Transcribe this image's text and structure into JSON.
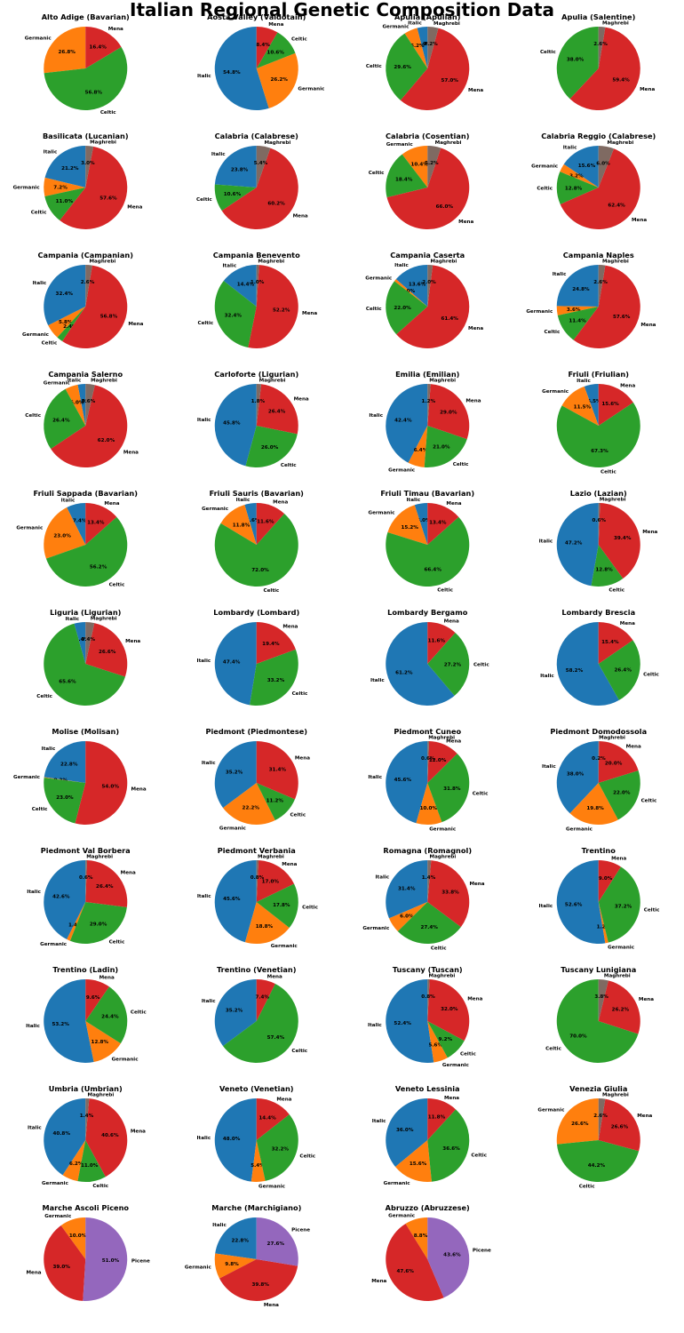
{
  "title": "Italian Regional Genetic Composition Data",
  "colors": {
    "Italic": "#1f77b4",
    "Germanic": "#ff7f0e",
    "Celtic": "#2ca02c",
    "Mena": "#d62728",
    "Picene": "#9467bd",
    "Maghrebi": "#7f6a62"
  },
  "chart_data": [
    {
      "type": "pie",
      "title": "Alto Adige (Bavarian)",
      "slices": [
        {
          "label": "Germanic",
          "value": 26.8
        },
        {
          "label": "Celtic",
          "value": 56.8
        },
        {
          "label": "Mena",
          "value": 16.4
        }
      ]
    },
    {
      "type": "pie",
      "title": "Aosta Valley (Valdotain)",
      "slices": [
        {
          "label": "Italic",
          "value": 54.8
        },
        {
          "label": "Germanic",
          "value": 26.2
        },
        {
          "label": "Celtic",
          "value": 10.6
        },
        {
          "label": "Mena",
          "value": 8.4
        }
      ]
    },
    {
      "type": "pie",
      "title": "Apulia (Apulian)",
      "slices": [
        {
          "label": "Italic",
          "value": 4.0
        },
        {
          "label": "Germanic",
          "value": 5.2
        },
        {
          "label": "Celtic",
          "value": 29.6
        },
        {
          "label": "Mena",
          "value": 57.0
        },
        {
          "label": "Maghrebi",
          "value": 4.2
        }
      ]
    },
    {
      "type": "pie",
      "title": "Apulia (Salentine)",
      "slices": [
        {
          "label": "Celtic",
          "value": 38.0
        },
        {
          "label": "Mena",
          "value": 59.4
        },
        {
          "label": "Maghrebi",
          "value": 2.6
        }
      ]
    },
    {
      "type": "pie",
      "title": "Basilicata (Lucanian)",
      "slices": [
        {
          "label": "Italic",
          "value": 21.2
        },
        {
          "label": "Germanic",
          "value": 7.2
        },
        {
          "label": "Celtic",
          "value": 11.0
        },
        {
          "label": "Mena",
          "value": 57.6
        },
        {
          "label": "Maghrebi",
          "value": 3.0
        }
      ]
    },
    {
      "type": "pie",
      "title": "Calabria (Calabrese)",
      "slices": [
        {
          "label": "Italic",
          "value": 23.8
        },
        {
          "label": "Celtic",
          "value": 10.6
        },
        {
          "label": "Mena",
          "value": 60.2
        },
        {
          "label": "Maghrebi",
          "value": 5.4
        }
      ]
    },
    {
      "type": "pie",
      "title": "Calabria (Cosentian)",
      "slices": [
        {
          "label": "Germanic",
          "value": 10.4
        },
        {
          "label": "Celtic",
          "value": 18.4
        },
        {
          "label": "Mena",
          "value": 66.0
        },
        {
          "label": "Maghrebi",
          "value": 5.2
        }
      ]
    },
    {
      "type": "pie",
      "title": "Calabria Reggio (Calabrese)",
      "slices": [
        {
          "label": "Italic",
          "value": 15.6
        },
        {
          "label": "Germanic",
          "value": 3.2
        },
        {
          "label": "Celtic",
          "value": 12.8
        },
        {
          "label": "Mena",
          "value": 62.4
        },
        {
          "label": "Maghrebi",
          "value": 6.0
        }
      ]
    },
    {
      "type": "pie",
      "title": "Campania (Campanian)",
      "slices": [
        {
          "label": "Italic",
          "value": 32.4
        },
        {
          "label": "Germanic",
          "value": 5.8
        },
        {
          "label": "Celtic",
          "value": 2.4
        },
        {
          "label": "Mena",
          "value": 56.8
        },
        {
          "label": "Maghrebi",
          "value": 2.6
        }
      ]
    },
    {
      "type": "pie",
      "title": "Campania Benevento",
      "slices": [
        {
          "label": "Italic",
          "value": 14.4
        },
        {
          "label": "Celtic",
          "value": 32.4
        },
        {
          "label": "Mena",
          "value": 52.2
        },
        {
          "label": "Maghrebi",
          "value": 1.0
        }
      ]
    },
    {
      "type": "pie",
      "title": "Campania Caserta",
      "slices": [
        {
          "label": "Italic",
          "value": 13.6
        },
        {
          "label": "Germanic",
          "value": 1.0
        },
        {
          "label": "Celtic",
          "value": 22.0
        },
        {
          "label": "Mena",
          "value": 61.4
        },
        {
          "label": "Maghrebi",
          "value": 2.0
        }
      ]
    },
    {
      "type": "pie",
      "title": "Campania Naples",
      "slices": [
        {
          "label": "Italic",
          "value": 24.8
        },
        {
          "label": "Germanic",
          "value": 3.6
        },
        {
          "label": "Celtic",
          "value": 11.4
        },
        {
          "label": "Mena",
          "value": 57.6
        },
        {
          "label": "Maghrebi",
          "value": 2.6
        }
      ]
    },
    {
      "type": "pie",
      "title": "Campania Salerno",
      "slices": [
        {
          "label": "Italic",
          "value": 3.0
        },
        {
          "label": "Germanic",
          "value": 5.0
        },
        {
          "label": "Celtic",
          "value": 26.4
        },
        {
          "label": "Mena",
          "value": 62.0
        },
        {
          "label": "Maghrebi",
          "value": 3.6
        }
      ]
    },
    {
      "type": "pie",
      "title": "Carloforte (Ligurian)",
      "slices": [
        {
          "label": "Italic",
          "value": 45.8
        },
        {
          "label": "Celtic",
          "value": 26.0
        },
        {
          "label": "Mena",
          "value": 26.4
        },
        {
          "label": "Maghrebi",
          "value": 1.8
        }
      ]
    },
    {
      "type": "pie",
      "title": "Emilia (Emilian)",
      "slices": [
        {
          "label": "Italic",
          "value": 42.4
        },
        {
          "label": "Germanic",
          "value": 6.4
        },
        {
          "label": "Celtic",
          "value": 21.0
        },
        {
          "label": "Mena",
          "value": 29.0
        },
        {
          "label": "Maghrebi",
          "value": 1.2
        }
      ]
    },
    {
      "type": "pie",
      "title": "Friuli (Friulian)",
      "slices": [
        {
          "label": "Italic",
          "value": 5.6
        },
        {
          "label": "Germanic",
          "value": 11.6
        },
        {
          "label": "Celtic",
          "value": 68.0
        },
        {
          "label": "Mena",
          "value": 15.8
        }
      ]
    },
    {
      "type": "pie",
      "title": "Friuli Sappada (Bavarian)",
      "slices": [
        {
          "label": "Italic",
          "value": 7.4
        },
        {
          "label": "Germanic",
          "value": 23.0
        },
        {
          "label": "Celtic",
          "value": 56.2
        },
        {
          "label": "Mena",
          "value": 13.4
        }
      ]
    },
    {
      "type": "pie",
      "title": "Friuli Sauris (Bavarian)",
      "slices": [
        {
          "label": "Italic",
          "value": 4.6
        },
        {
          "label": "Germanic",
          "value": 11.8
        },
        {
          "label": "Celtic",
          "value": 72.0
        },
        {
          "label": "Mena",
          "value": 11.6
        }
      ]
    },
    {
      "type": "pie",
      "title": "Friuli Timau (Bavarian)",
      "slices": [
        {
          "label": "Italic",
          "value": 5.0
        },
        {
          "label": "Germanic",
          "value": 15.2
        },
        {
          "label": "Celtic",
          "value": 66.4
        },
        {
          "label": "Mena",
          "value": 13.4
        }
      ]
    },
    {
      "type": "pie",
      "title": "Lazio (Lazian)",
      "slices": [
        {
          "label": "Italic",
          "value": 47.2
        },
        {
          "label": "Celtic",
          "value": 12.8
        },
        {
          "label": "Mena",
          "value": 39.4
        },
        {
          "label": "Maghrebi",
          "value": 0.6
        }
      ]
    },
    {
      "type": "pie",
      "title": "Liguria (Ligurian)",
      "slices": [
        {
          "label": "Italic",
          "value": 4.4
        },
        {
          "label": "Celtic",
          "value": 65.6
        },
        {
          "label": "Mena",
          "value": 26.6
        },
        {
          "label": "Maghrebi",
          "value": 3.4
        }
      ]
    },
    {
      "type": "pie",
      "title": "Lombardy (Lombard)",
      "slices": [
        {
          "label": "Italic",
          "value": 47.4
        },
        {
          "label": "Celtic",
          "value": 33.2
        },
        {
          "label": "Mena",
          "value": 19.4
        }
      ]
    },
    {
      "type": "pie",
      "title": "Lombardy Bergamo",
      "slices": [
        {
          "label": "Italic",
          "value": 61.2
        },
        {
          "label": "Celtic",
          "value": 27.2
        },
        {
          "label": "Mena",
          "value": 11.6
        }
      ]
    },
    {
      "type": "pie",
      "title": "Lombardy Brescia",
      "slices": [
        {
          "label": "Italic",
          "value": 58.2
        },
        {
          "label": "Celtic",
          "value": 26.4
        },
        {
          "label": "Mena",
          "value": 15.4
        }
      ]
    },
    {
      "type": "pie",
      "title": "Molise (Molisan)",
      "slices": [
        {
          "label": "Italic",
          "value": 22.8
        },
        {
          "label": "Germanic",
          "value": 0.2
        },
        {
          "label": "Celtic",
          "value": 23.0
        },
        {
          "label": "Mena",
          "value": 54.0
        }
      ]
    },
    {
      "type": "pie",
      "title": "Piedmont (Piedmontese)",
      "slices": [
        {
          "label": "Italic",
          "value": 35.2
        },
        {
          "label": "Germanic",
          "value": 22.2
        },
        {
          "label": "Celtic",
          "value": 11.2
        },
        {
          "label": "Mena",
          "value": 31.4
        }
      ]
    },
    {
      "type": "pie",
      "title": "Piedmont Cuneo",
      "slices": [
        {
          "label": "Italic",
          "value": 45.6
        },
        {
          "label": "Germanic",
          "value": 10.0
        },
        {
          "label": "Celtic",
          "value": 31.8
        },
        {
          "label": "Mena",
          "value": 12.0
        },
        {
          "label": "Maghrebi",
          "value": 0.6
        }
      ]
    },
    {
      "type": "pie",
      "title": "Piedmont Domodossola",
      "slices": [
        {
          "label": "Italic",
          "value": 38.0
        },
        {
          "label": "Germanic",
          "value": 19.8
        },
        {
          "label": "Celtic",
          "value": 22.0
        },
        {
          "label": "Mena",
          "value": 20.0
        },
        {
          "label": "Maghrebi",
          "value": 0.2
        }
      ]
    },
    {
      "type": "pie",
      "title": "Piedmont Val Borbera",
      "slices": [
        {
          "label": "Italic",
          "value": 42.6
        },
        {
          "label": "Germanic",
          "value": 1.4
        },
        {
          "label": "Celtic",
          "value": 29.0
        },
        {
          "label": "Mena",
          "value": 26.4
        },
        {
          "label": "Maghrebi",
          "value": 0.6
        }
      ]
    },
    {
      "type": "pie",
      "title": "Piedmont Verbania",
      "slices": [
        {
          "label": "Italic",
          "value": 45.6
        },
        {
          "label": "Germanic",
          "value": 18.8
        },
        {
          "label": "Celtic",
          "value": 17.8
        },
        {
          "label": "Mena",
          "value": 17.0
        },
        {
          "label": "Maghrebi",
          "value": 0.8
        }
      ]
    },
    {
      "type": "pie",
      "title": "Romagna (Romagnol)",
      "slices": [
        {
          "label": "Italic",
          "value": 31.4
        },
        {
          "label": "Germanic",
          "value": 6.0
        },
        {
          "label": "Celtic",
          "value": 27.4
        },
        {
          "label": "Mena",
          "value": 33.8
        },
        {
          "label": "Maghrebi",
          "value": 1.4
        }
      ]
    },
    {
      "type": "pie",
      "title": "Trentino",
      "slices": [
        {
          "label": "Italic",
          "value": 52.6
        },
        {
          "label": "Germanic",
          "value": 1.2
        },
        {
          "label": "Celtic",
          "value": 37.2
        },
        {
          "label": "Mena",
          "value": 9.0
        }
      ]
    },
    {
      "type": "pie",
      "title": "Trentino (Ladin)",
      "slices": [
        {
          "label": "Italic",
          "value": 53.2
        },
        {
          "label": "Germanic",
          "value": 12.8
        },
        {
          "label": "Celtic",
          "value": 24.4
        },
        {
          "label": "Mena",
          "value": 9.6
        }
      ]
    },
    {
      "type": "pie",
      "title": "Trentino (Venetian)",
      "slices": [
        {
          "label": "Italic",
          "value": 35.2
        },
        {
          "label": "Celtic",
          "value": 57.4
        },
        {
          "label": "Mena",
          "value": 7.4
        }
      ]
    },
    {
      "type": "pie",
      "title": "Tuscany (Tuscan)",
      "slices": [
        {
          "label": "Italic",
          "value": 52.4
        },
        {
          "label": "Germanic",
          "value": 5.6
        },
        {
          "label": "Celtic",
          "value": 9.2
        },
        {
          "label": "Mena",
          "value": 32.0
        },
        {
          "label": "Maghrebi",
          "value": 0.8
        }
      ]
    },
    {
      "type": "pie",
      "title": "Tuscany Lunigiana",
      "slices": [
        {
          "label": "Celtic",
          "value": 70.0
        },
        {
          "label": "Mena",
          "value": 26.2
        },
        {
          "label": "Maghrebi",
          "value": 3.8
        }
      ]
    },
    {
      "type": "pie",
      "title": "Umbria (Umbrian)",
      "slices": [
        {
          "label": "Italic",
          "value": 40.8
        },
        {
          "label": "Germanic",
          "value": 6.2
        },
        {
          "label": "Celtic",
          "value": 11.0
        },
        {
          "label": "Mena",
          "value": 40.6
        },
        {
          "label": "Maghrebi",
          "value": 1.4
        }
      ]
    },
    {
      "type": "pie",
      "title": "Veneto (Venetian)",
      "slices": [
        {
          "label": "Italic",
          "value": 48.0
        },
        {
          "label": "Germanic",
          "value": 5.4
        },
        {
          "label": "Celtic",
          "value": 32.2
        },
        {
          "label": "Mena",
          "value": 14.4
        }
      ]
    },
    {
      "type": "pie",
      "title": "Veneto Lessinia",
      "slices": [
        {
          "label": "Italic",
          "value": 36.0
        },
        {
          "label": "Germanic",
          "value": 15.6
        },
        {
          "label": "Celtic",
          "value": 36.6
        },
        {
          "label": "Mena",
          "value": 11.8
        }
      ]
    },
    {
      "type": "pie",
      "title": "Venezia Giulia",
      "slices": [
        {
          "label": "Germanic",
          "value": 26.6
        },
        {
          "label": "Celtic",
          "value": 44.2
        },
        {
          "label": "Mena",
          "value": 26.6
        },
        {
          "label": "Maghrebi",
          "value": 2.6
        }
      ]
    },
    {
      "type": "pie",
      "title": "Marche Ascoli Piceno",
      "slices": [
        {
          "label": "Germanic",
          "value": 10.0
        },
        {
          "label": "Mena",
          "value": 39.0
        },
        {
          "label": "Picene",
          "value": 51.0
        }
      ]
    },
    {
      "type": "pie",
      "title": "Marche (Marchigiano)",
      "slices": [
        {
          "label": "Italic",
          "value": 22.8
        },
        {
          "label": "Germanic",
          "value": 9.8
        },
        {
          "label": "Mena",
          "value": 39.8
        },
        {
          "label": "Picene",
          "value": 27.6
        }
      ]
    },
    {
      "type": "pie",
      "title": "Abruzzo (Abruzzese)",
      "slices": [
        {
          "label": "Germanic",
          "value": 8.8
        },
        {
          "label": "Mena",
          "value": 47.6
        },
        {
          "label": "Picene",
          "value": 43.6
        }
      ]
    }
  ]
}
